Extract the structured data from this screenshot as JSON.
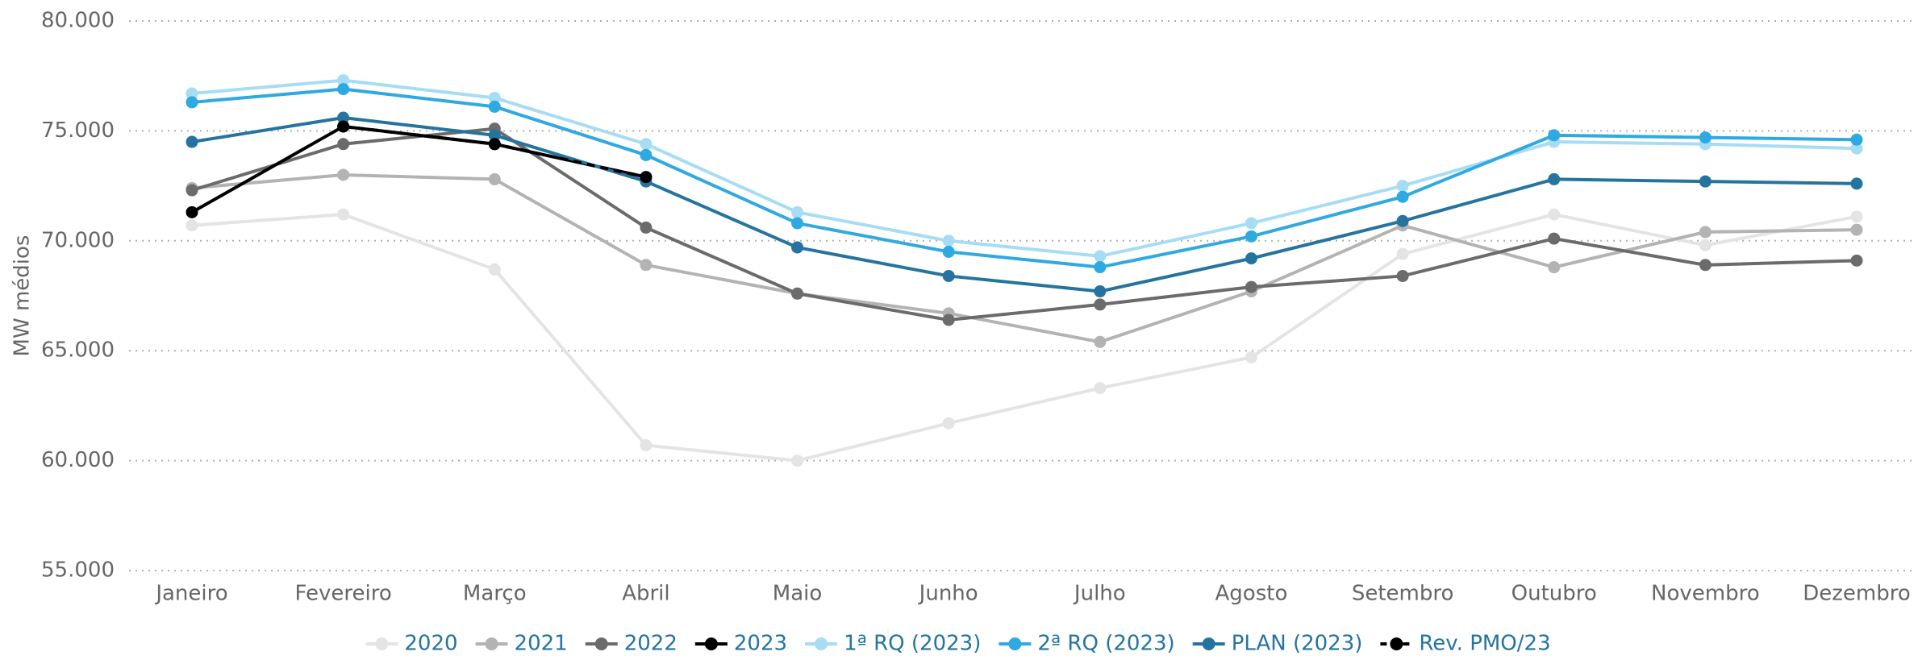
{
  "chart_data": {
    "type": "line",
    "y_label": "MW médios",
    "categories": [
      "Janeiro",
      "Fevereiro",
      "Março",
      "Abril",
      "Maio",
      "Junho",
      "Julho",
      "Agosto",
      "Setembro",
      "Outubro",
      "Novembro",
      "Dezembro"
    ],
    "ylim": [
      55000,
      80000
    ],
    "yticks": [
      {
        "value": 55000,
        "label": "55.000"
      },
      {
        "value": 60000,
        "label": "60.000"
      },
      {
        "value": 65000,
        "label": "65.000"
      },
      {
        "value": 70000,
        "label": "70.000"
      },
      {
        "value": 75000,
        "label": "75.000"
      },
      {
        "value": 80000,
        "label": "80.000"
      }
    ],
    "grid": true,
    "legend": "bottom",
    "series": [
      {
        "name": "2020",
        "color": "#e4e4e4",
        "values": [
          70700,
          71200,
          68700,
          60700,
          60000,
          61700,
          63300,
          64700,
          69400,
          71200,
          69800,
          71100
        ]
      },
      {
        "name": "2021",
        "color": "#b3b3b3",
        "values": [
          72400,
          73000,
          72800,
          68900,
          67600,
          66700,
          65400,
          67700,
          70700,
          68800,
          70400,
          70500
        ]
      },
      {
        "name": "2022",
        "color": "#6b6b6b",
        "values": [
          72300,
          74400,
          75100,
          70600,
          67600,
          66400,
          67100,
          67900,
          68400,
          70100,
          68900,
          69100
        ]
      },
      {
        "name": "2023",
        "color": "#000000",
        "values": [
          71300,
          75200,
          74400,
          72900,
          null,
          null,
          null,
          null,
          null,
          null,
          null,
          null
        ]
      },
      {
        "name": "1ª RQ (2023)",
        "color": "#a6dcf4",
        "values": [
          76700,
          77300,
          76500,
          74400,
          71300,
          70000,
          69300,
          70800,
          72500,
          74500,
          74400,
          74200
        ]
      },
      {
        "name": "2ª RQ (2023)",
        "color": "#2fa9e1",
        "values": [
          76300,
          76900,
          76100,
          73900,
          70800,
          69500,
          68800,
          70200,
          72000,
          74800,
          74700,
          74600
        ]
      },
      {
        "name": "PLAN (2023)",
        "color": "#2574a0",
        "values": [
          74500,
          75600,
          74800,
          72700,
          69700,
          68400,
          67700,
          69200,
          70900,
          72800,
          72700,
          72600
        ]
      },
      {
        "name": "Rev. PMO/23",
        "color": "#000000",
        "dashed": true,
        "values": [
          null,
          75200,
          74400,
          72900,
          null,
          null,
          null,
          null,
          null,
          null,
          null,
          null
        ]
      }
    ]
  }
}
